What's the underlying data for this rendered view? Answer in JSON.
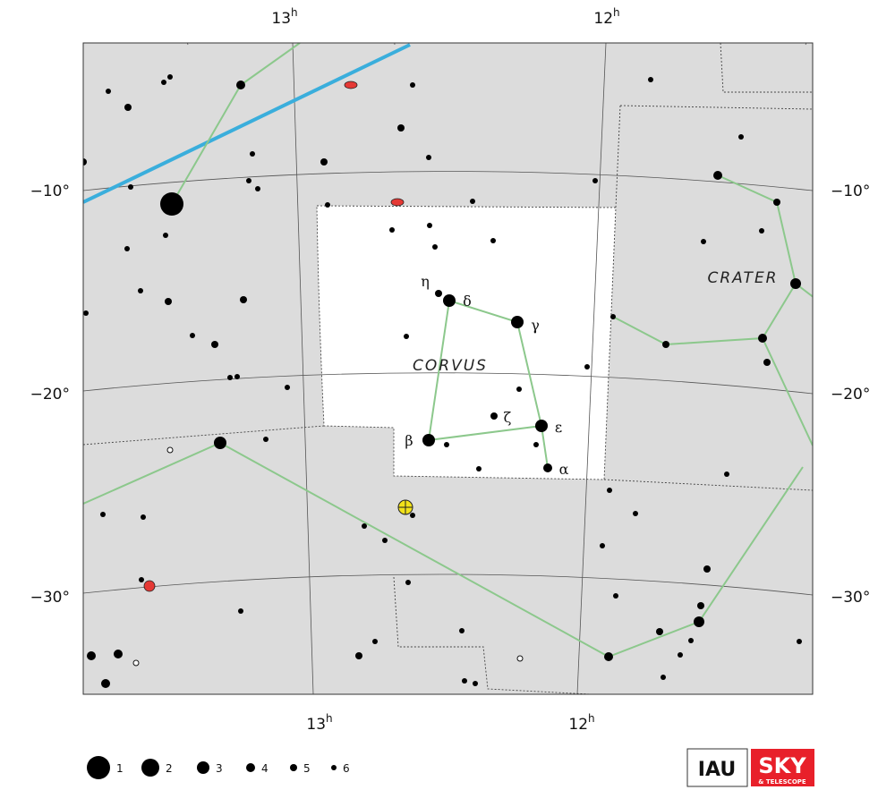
{
  "map": {
    "ra_labels_top": [
      {
        "hour": "13",
        "unit": "h"
      },
      {
        "hour": "12",
        "unit": "h"
      }
    ],
    "ra_labels_bottom": [
      {
        "hour": "13",
        "unit": "h"
      },
      {
        "hour": "12",
        "unit": "h"
      }
    ],
    "dec_labels_left": [
      "−10°",
      "−20°",
      "−30°"
    ],
    "dec_labels_right": [
      "−10°",
      "−20°",
      "−30°"
    ],
    "constellations": [
      "CORVUS",
      "CRATER"
    ],
    "star_labels": [
      "η",
      "δ",
      "γ",
      "ζ",
      "ε",
      "β",
      "α"
    ],
    "legend": {
      "magnitudes": [
        "1",
        "2",
        "3",
        "4",
        "5",
        "6"
      ]
    },
    "logos": {
      "iau": "IAU",
      "sky": "SKY",
      "telescope": "& TELESCOPE"
    }
  }
}
